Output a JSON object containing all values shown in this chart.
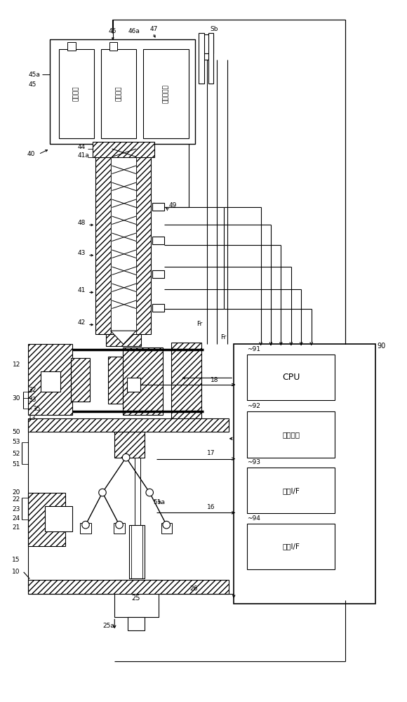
{
  "bg": "#ffffff",
  "lc": "#000000",
  "figsize": [
    5.8,
    10.0
  ],
  "dpi": 100,
  "motor_texts": [
    "计量马达",
    "注射马达",
    "压力检测器"
  ],
  "cpu_texts": [
    "CPU",
    "存储介质",
    "输入I/F",
    "输出I/F"
  ],
  "cpu_ids": [
    "~91",
    "~92",
    "~93",
    "~94"
  ]
}
